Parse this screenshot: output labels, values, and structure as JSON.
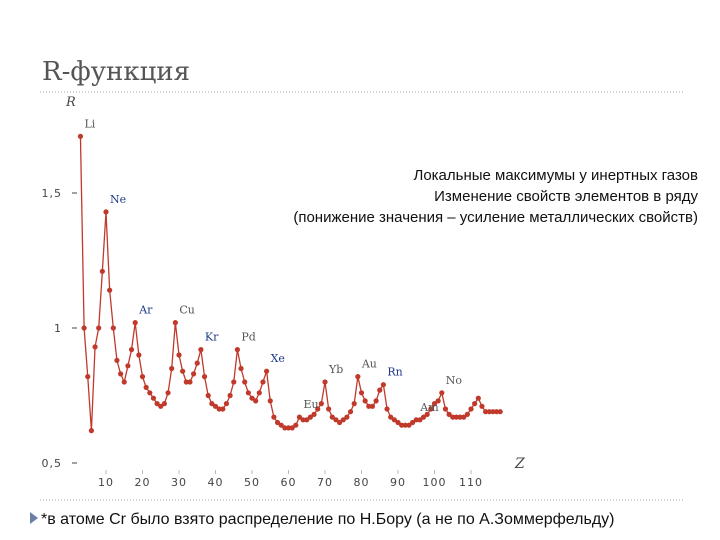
{
  "slide_title": "R-функция",
  "notes": [
    "Локальные максимумы у инертных газов",
    "Изменение свойств элементов в ряду",
    "(понижение значения – усиление металлических свойств)"
  ],
  "footnote": "*в атоме Cr было взято распределение по Н.Бору (а не по А.Зоммерфельду)",
  "chart_data": {
    "type": "line",
    "xlabel": "Z",
    "ylabel": "R",
    "xlim": [
      0,
      120
    ],
    "ylim": [
      0.5,
      1.85
    ],
    "xticks": [
      10,
      20,
      30,
      40,
      50,
      60,
      70,
      80,
      90,
      100,
      110
    ],
    "yticks": [
      {
        "value": 0.5,
        "label": "0,5"
      },
      1,
      {
        "value": 1.5,
        "label": "1,5"
      }
    ],
    "x": [
      3,
      4,
      5,
      6,
      7,
      8,
      9,
      10,
      11,
      12,
      13,
      14,
      15,
      16,
      17,
      18,
      19,
      20,
      21,
      22,
      23,
      24,
      25,
      26,
      27,
      28,
      29,
      30,
      31,
      32,
      33,
      34,
      35,
      36,
      37,
      38,
      39,
      40,
      41,
      42,
      43,
      44,
      45,
      46,
      47,
      48,
      49,
      50,
      51,
      52,
      53,
      54,
      55,
      56,
      57,
      58,
      59,
      60,
      61,
      62,
      63,
      64,
      65,
      66,
      67,
      68,
      69,
      70,
      71,
      72,
      73,
      74,
      75,
      76,
      77,
      78,
      79,
      80,
      81,
      82,
      83,
      84,
      85,
      86,
      87,
      88,
      89,
      90,
      91,
      92,
      93,
      94,
      95,
      96,
      97,
      98,
      99,
      100,
      101,
      102,
      103,
      104,
      105,
      106,
      107,
      108,
      109,
      110,
      111,
      112,
      113,
      114,
      115,
      116,
      117,
      118
    ],
    "series": [
      {
        "name": "R",
        "color": "#c0392b",
        "values": [
          1.71,
          1.0,
          0.82,
          0.62,
          0.93,
          1.0,
          1.21,
          1.43,
          1.14,
          1.0,
          0.88,
          0.83,
          0.8,
          0.86,
          0.92,
          1.02,
          0.9,
          0.82,
          0.78,
          0.76,
          0.74,
          0.72,
          0.71,
          0.72,
          0.76,
          0.85,
          1.02,
          0.9,
          0.84,
          0.8,
          0.8,
          0.83,
          0.87,
          0.92,
          0.82,
          0.75,
          0.72,
          0.71,
          0.7,
          0.7,
          0.72,
          0.75,
          0.8,
          0.92,
          0.85,
          0.8,
          0.76,
          0.74,
          0.73,
          0.76,
          0.8,
          0.84,
          0.73,
          0.67,
          0.65,
          0.64,
          0.63,
          0.63,
          0.63,
          0.64,
          0.67,
          0.66,
          0.66,
          0.67,
          0.68,
          0.7,
          0.72,
          0.8,
          0.7,
          0.67,
          0.66,
          0.65,
          0.66,
          0.67,
          0.69,
          0.72,
          0.82,
          0.76,
          0.73,
          0.71,
          0.71,
          0.73,
          0.77,
          0.79,
          0.7,
          0.67,
          0.66,
          0.65,
          0.64,
          0.64,
          0.64,
          0.65,
          0.66,
          0.66,
          0.67,
          0.68,
          0.7,
          0.72,
          0.73,
          0.76,
          0.7,
          0.68,
          0.67,
          0.67,
          0.67,
          0.67,
          0.68,
          0.7,
          0.72,
          0.74,
          0.71,
          0.69,
          0.69,
          0.69,
          0.69,
          0.69
        ]
      }
    ],
    "annotations": [
      {
        "text": "Li",
        "x": 3,
        "color": "#555555"
      },
      {
        "text": "Ne",
        "x": 10,
        "color": "#1f3a8a"
      },
      {
        "text": "Ar",
        "x": 18,
        "color": "#1f3a8a"
      },
      {
        "text": "Cu",
        "x": 29,
        "color": "#555555"
      },
      {
        "text": "Kr",
        "x": 36,
        "color": "#1f3a8a"
      },
      {
        "text": "Pd",
        "x": 46,
        "color": "#555555"
      },
      {
        "text": "Xe",
        "x": 54,
        "color": "#1f3a8a"
      },
      {
        "text": "Eu",
        "x": 63,
        "color": "#555555"
      },
      {
        "text": "Yb",
        "x": 70,
        "color": "#555555"
      },
      {
        "text": "Au",
        "x": 79,
        "color": "#555555"
      },
      {
        "text": "Rn",
        "x": 86,
        "color": "#1f3a8a"
      },
      {
        "text": "Am",
        "x": 95,
        "color": "#555555"
      },
      {
        "text": "No",
        "x": 102,
        "color": "#555555"
      }
    ]
  }
}
